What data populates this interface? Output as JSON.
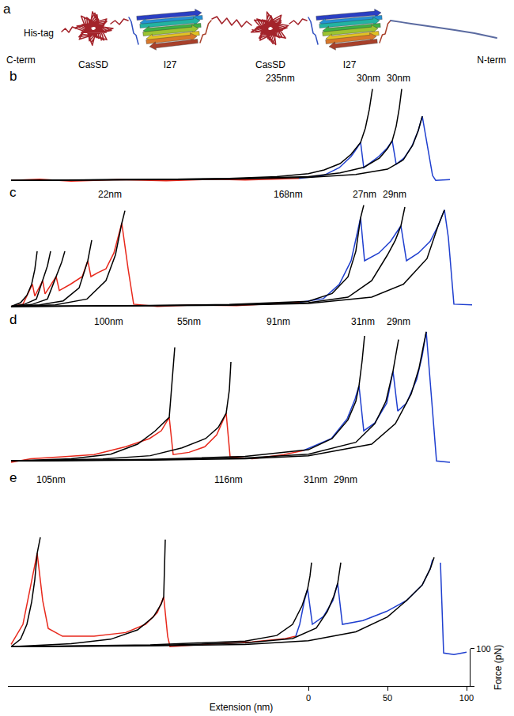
{
  "panel_a": {
    "label": "a",
    "his_tag": "His-tag",
    "c_term": "C-term",
    "n_term": "N-term",
    "domains": [
      "CasSD",
      "I27",
      "CasSD",
      "I27"
    ]
  },
  "chart_data": [
    {
      "panel": "b",
      "type": "line",
      "xlim": [
        -190,
        105
      ],
      "ylim": [
        -25,
        255
      ],
      "tick_labels": false,
      "annotations": [
        {
          "text": "235nm",
          "x": -18
        },
        {
          "text": "30nm",
          "x": 38
        },
        {
          "text": "30nm",
          "x": 57
        }
      ],
      "series": [
        {
          "color": "#e8291c",
          "x": [
            -188,
            -170,
            -150,
            -120,
            -90,
            -60,
            -40,
            -20,
            -6
          ],
          "values": [
            0,
            3,
            -2,
            2,
            -1,
            3,
            1,
            4,
            5
          ]
        },
        {
          "color": "#1f3fcf",
          "x": [
            -6,
            9.5,
            19.5,
            27,
            30.5,
            33,
            35,
            39.5,
            44.5,
            49.5,
            53,
            55.5,
            60.5,
            65.5,
            69.5,
            72,
            78.5,
            80.5,
            89.5
          ],
          "values": [
            5,
            13,
            34,
            64,
            85,
            102,
            34,
            49,
            64,
            85,
            106,
            43,
            60,
            92,
            134,
            172,
            13,
            0,
            2
          ]
        },
        {
          "color": "#000000",
          "x": [
            -188,
            -100,
            -50,
            -20,
            0,
            10,
            20,
            27,
            33,
            36,
            38.5,
            40.5
          ],
          "values": [
            0,
            2,
            5,
            10,
            18,
            28,
            45,
            70,
            102,
            140,
            190,
            245
          ]
        },
        {
          "color": "#000000",
          "x": [
            -188,
            -100,
            -50,
            0,
            20,
            35,
            45,
            50,
            53,
            55.5,
            57.5,
            59
          ],
          "values": [
            0,
            2,
            4,
            10,
            20,
            35,
            60,
            85,
            106,
            145,
            195,
            245
          ]
        },
        {
          "color": "#000000",
          "x": [
            -188,
            -100,
            -50,
            0,
            30,
            50,
            60,
            66,
            69.5,
            72
          ],
          "values": [
            0,
            1,
            3,
            8,
            16,
            30,
            55,
            95,
            134,
            172
          ]
        }
      ]
    },
    {
      "panel": "c",
      "type": "line",
      "xlim": [
        -190,
        105
      ],
      "ylim": [
        -20,
        285
      ],
      "tick_labels": false,
      "annotations": [
        {
          "text": "22nm",
          "x": -125.5
        },
        {
          "text": "168nm",
          "x": -13
        },
        {
          "text": "27nm",
          "x": 35.5
        },
        {
          "text": "29nm",
          "x": 54.5
        }
      ],
      "series": [
        {
          "color": "#e8291c",
          "x": [
            -188,
            -180.5,
            -174.5,
            -173,
            -168,
            -166.5,
            -159.5,
            -157.5,
            -150.5,
            -143,
            -139.5,
            -137.5,
            -133,
            -128,
            -123,
            -118,
            -114,
            -110.5,
            -95.5,
            -70.5,
            -45.5,
            -15.5,
            -5.5
          ],
          "values": [
            0,
            6,
            60,
            28,
            70,
            34,
            81,
            43,
            60,
            81,
            124,
            81,
            92,
            102,
            145,
            226,
            102,
            6,
            0,
            4,
            2,
            9,
            11
          ]
        },
        {
          "color": "#1f3fcf",
          "x": [
            -5.5,
            9.5,
            19.5,
            27,
            33,
            35.5,
            44.5,
            52,
            58.5,
            62,
            69.5,
            77,
            82,
            86,
            88.5,
            92,
            103.5
          ],
          "values": [
            11,
            21,
            60,
            124,
            241,
            124,
            145,
            177,
            219,
            124,
            145,
            177,
            219,
            262,
            187,
            6,
            4
          ]
        },
        {
          "color": "#000000",
          "x": [
            -188,
            -182,
            -178,
            -175,
            -173,
            -171.5
          ],
          "values": [
            0,
            10,
            30,
            60,
            100,
            150
          ]
        },
        {
          "color": "#000000",
          "x": [
            -188,
            -180,
            -172,
            -168,
            -165,
            -163
          ],
          "values": [
            0,
            5,
            20,
            70,
            110,
            150
          ]
        },
        {
          "color": "#000000",
          "x": [
            -188,
            -175,
            -165,
            -159.5,
            -156,
            -154
          ],
          "values": [
            0,
            5,
            20,
            81,
            120,
            150
          ]
        },
        {
          "color": "#000000",
          "x": [
            -188,
            -170,
            -155,
            -145,
            -139.5,
            -137
          ],
          "values": [
            0,
            4,
            15,
            50,
            124,
            180
          ]
        },
        {
          "color": "#000000",
          "x": [
            -188,
            -160,
            -140,
            -128,
            -122,
            -118,
            -116
          ],
          "values": [
            0,
            4,
            20,
            70,
            140,
            226,
            260
          ]
        },
        {
          "color": "#000000",
          "x": [
            -188,
            -100,
            -50,
            0,
            15,
            25,
            30,
            33,
            35
          ],
          "values": [
            0,
            2,
            5,
            14,
            35,
            80,
            150,
            241,
            275
          ]
        },
        {
          "color": "#000000",
          "x": [
            -188,
            -100,
            -50,
            0,
            25,
            40,
            50,
            55,
            58.5,
            61
          ],
          "values": [
            0,
            2,
            4,
            10,
            25,
            70,
            140,
            180,
            219,
            270
          ]
        },
        {
          "color": "#000000",
          "x": [
            -188,
            -100,
            -50,
            0,
            40,
            60,
            75,
            82,
            86
          ],
          "values": [
            0,
            1,
            3,
            8,
            25,
            60,
            130,
            219,
            262
          ]
        }
      ]
    },
    {
      "panel": "d",
      "type": "line",
      "xlim": [
        -190,
        105
      ],
      "ylim": [
        -25,
        355
      ],
      "tick_labels": false,
      "annotations": [
        {
          "text": "100nm",
          "x": -126.5
        },
        {
          "text": "55nm",
          "x": -75.5
        },
        {
          "text": "91nm",
          "x": -19
        },
        {
          "text": "31nm",
          "x": 34.5
        },
        {
          "text": "29nm",
          "x": 57
        }
      ],
      "series": [
        {
          "color": "#e8291c",
          "x": [
            -188,
            -175.5,
            -155.5,
            -135.5,
            -115.5,
            -100.5,
            -93,
            -88,
            -85.5,
            -75.5,
            -65.5,
            -58,
            -52,
            -49.5,
            -35.5,
            -15.5,
            -3
          ],
          "values": [
            -4,
            6,
            11,
            17,
            38,
            60,
            81,
            117,
            17,
            23,
            38,
            70,
            128,
            11,
            6,
            17,
            28
          ]
        },
        {
          "color": "#1f3fcf",
          "x": [
            -3,
            14.5,
            24.5,
            29.5,
            32,
            35,
            42,
            49.5,
            53.5,
            56.5,
            62,
            68.5,
            72,
            74.5,
            78.5,
            81,
            89.5
          ],
          "values": [
            28,
            60,
            113,
            166,
            202,
            81,
            102,
            155,
            241,
            134,
            155,
            219,
            283,
            347,
            134,
            0,
            -4
          ]
        },
        {
          "color": "#000000",
          "x": [
            -188,
            -150,
            -125,
            -108,
            -97,
            -90,
            -88,
            -87,
            -85.5,
            -84.5
          ],
          "values": [
            0,
            6,
            18,
            45,
            80,
            110,
            117,
            170,
            250,
            305
          ]
        },
        {
          "color": "#000000",
          "x": [
            -188,
            -130,
            -100,
            -80,
            -65,
            -57,
            -52,
            -50,
            -49
          ],
          "values": [
            0,
            5,
            14,
            35,
            60,
            90,
            128,
            190,
            266
          ]
        },
        {
          "color": "#000000",
          "x": [
            -188,
            -100,
            -40,
            0,
            15,
            25,
            30,
            32,
            34,
            35.5
          ],
          "values": [
            0,
            4,
            12,
            30,
            60,
            110,
            160,
            202,
            270,
            336
          ]
        },
        {
          "color": "#000000",
          "x": [
            -188,
            -100,
            -40,
            0,
            30,
            42,
            49,
            53.5,
            55.5,
            57
          ],
          "values": [
            0,
            3,
            8,
            18,
            50,
            100,
            160,
            241,
            290,
            326
          ]
        },
        {
          "color": "#000000",
          "x": [
            -188,
            -100,
            -40,
            0,
            40,
            55,
            65,
            70,
            74.5
          ],
          "values": [
            0,
            2,
            6,
            14,
            45,
            100,
            180,
            250,
            347
          ]
        }
      ]
    },
    {
      "panel": "e",
      "type": "line",
      "xlim": [
        -190,
        105
      ],
      "ylim": [
        -25,
        430
      ],
      "tick_labels": "x",
      "xticks": [
        0,
        50,
        100
      ],
      "x_label": "Extension (nm)",
      "y2lim": [
        0,
        100
      ],
      "y2ticks": [
        100
      ],
      "y2_label": "Force (pN)",
      "annotations": [
        {
          "text": "105nm",
          "x": -163
        },
        {
          "text": "116nm",
          "x": -50.5
        },
        {
          "text": "31nm",
          "x": 4.5
        },
        {
          "text": "29nm",
          "x": 23.5
        }
      ],
      "series": [
        {
          "color": "#e8291c",
          "x": [
            -188,
            -180.5,
            -175.5,
            -171.5,
            -168,
            -164.5,
            -155.5,
            -135.5,
            -115.5,
            -103,
            -95.5,
            -91.5,
            -89,
            -87.5,
            -65.5,
            -35.5,
            -15.5,
            -8
          ],
          "values": [
            6,
            60,
            166,
            251,
            124,
            49,
            28,
            28,
            38,
            60,
            92,
            134,
            28,
            0,
            6,
            13,
            21,
            28
          ]
        },
        {
          "color": "#1f3fcf",
          "x": [
            -8,
            -5.5,
            -2.5,
            -0.5,
            2.5,
            9.5,
            15.5,
            18.5,
            21.5,
            34.5,
            49.5,
            62,
            72,
            77,
            78.5,
            80,
            83.5,
            85.5,
            92,
            100
          ],
          "values": [
            28,
            60,
            124,
            155,
            60,
            81,
            124,
            170,
            60,
            70,
            95,
            124,
            166,
            209,
            234,
            null,
            226,
            -17,
            -21,
            -15
          ]
        },
        {
          "color": "#000000",
          "x": [
            -188,
            -182,
            -178,
            -175,
            -173,
            -171.5,
            -169.5
          ],
          "values": [
            0,
            20,
            60,
            120,
            180,
            251,
            294
          ]
        },
        {
          "color": "#000000",
          "x": [
            -188,
            -150,
            -125,
            -108,
            -98,
            -93,
            -91.5,
            -91,
            -90.5
          ],
          "values": [
            0,
            8,
            20,
            45,
            80,
            115,
            134,
            200,
            288
          ]
        },
        {
          "color": "#000000",
          "x": [
            -188,
            -100,
            -40,
            -20,
            -10,
            -4,
            -0.5,
            1,
            2
          ],
          "values": [
            0,
            5,
            15,
            30,
            60,
            110,
            155,
            190,
            226
          ]
        },
        {
          "color": "#000000",
          "x": [
            -188,
            -100,
            -40,
            -10,
            5,
            12,
            16,
            18.5,
            20.5
          ],
          "values": [
            0,
            3,
            10,
            22,
            50,
            95,
            135,
            170,
            226
          ]
        },
        {
          "color": "#000000",
          "x": [
            -188,
            -100,
            -40,
            0,
            30,
            50,
            62,
            72,
            77,
            79.5
          ],
          "values": [
            0,
            2,
            6,
            16,
            40,
            80,
            124,
            166,
            209,
            240
          ]
        }
      ]
    }
  ]
}
